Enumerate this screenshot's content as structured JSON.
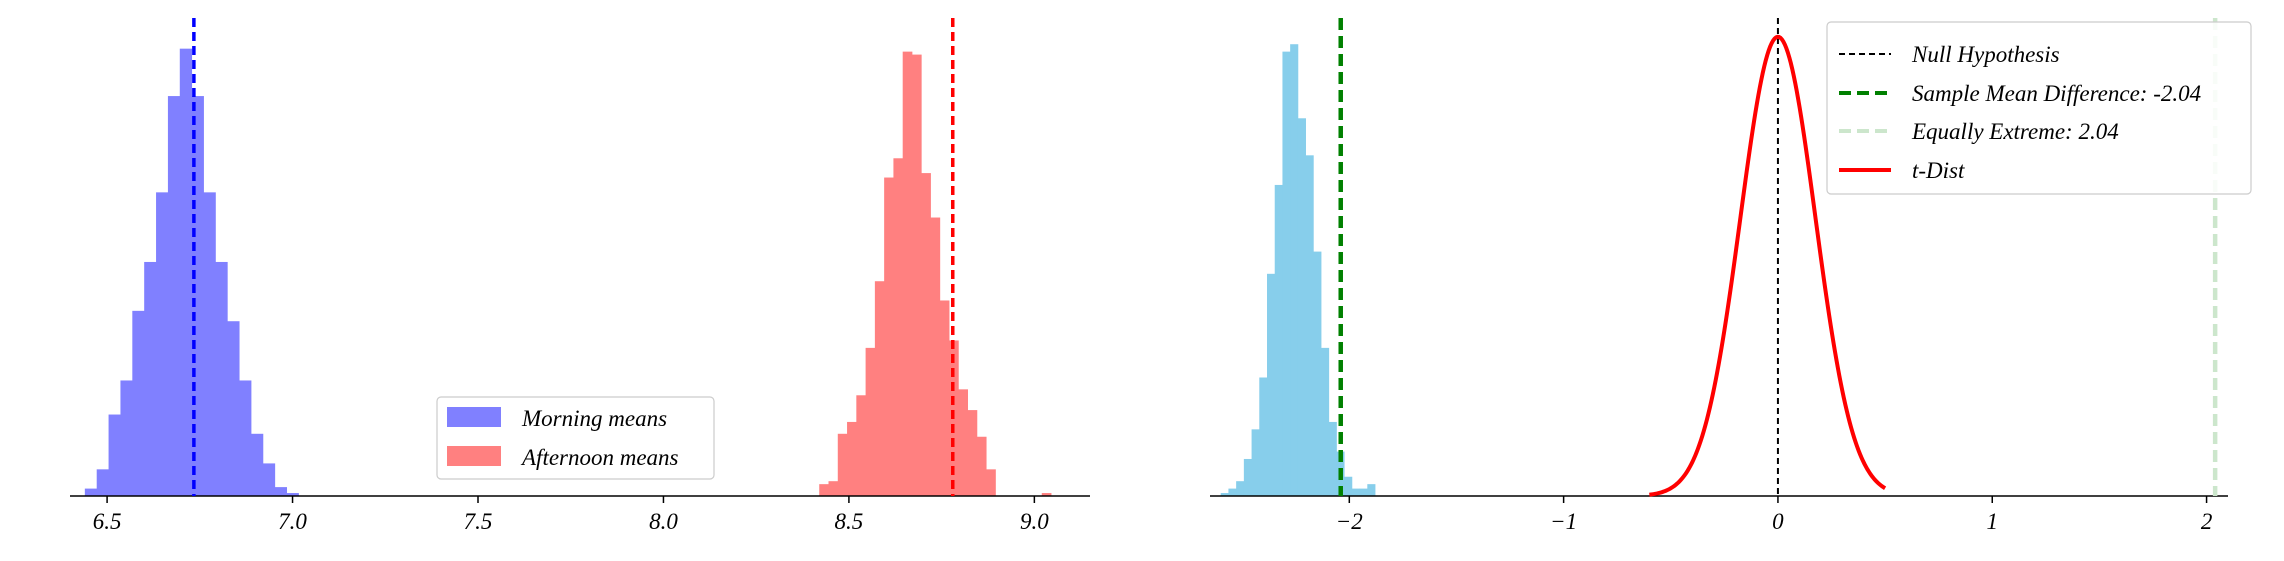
{
  "chart_data": [
    {
      "type": "histogram",
      "xlim": [
        6.4,
        9.15
      ],
      "ylim": [
        0,
        0.32
      ],
      "xticks": [
        6.5,
        7.0,
        7.5,
        8.0,
        8.5,
        9.0
      ],
      "xtick_labels": [
        "6.5",
        "7.0",
        "7.5",
        "8.0",
        "8.5",
        "9.0"
      ],
      "legend_position": "lower-center",
      "series": [
        {
          "name": "Morning means",
          "color": "#8080ff",
          "bin_width": 0.032,
          "bin_start": 6.44,
          "heights": [
            0.005,
            0.018,
            0.055,
            0.078,
            0.125,
            0.158,
            0.205,
            0.27,
            0.302,
            0.27,
            0.205,
            0.158,
            0.118,
            0.078,
            0.042,
            0.022,
            0.006,
            0.002
          ],
          "mean": 6.734,
          "mean_color": "#0000ff"
        },
        {
          "name": "Afternoon means",
          "color": "#ff8080",
          "bin_width": 0.025,
          "bin_start": 8.42,
          "heights": [
            0.008,
            0.01,
            0.042,
            0.05,
            0.068,
            0.1,
            0.145,
            0.215,
            0.228,
            0.3,
            0.298,
            0.218,
            0.188,
            0.132,
            0.105,
            0.072,
            0.058,
            0.04,
            0.018,
            0,
            0,
            0,
            0,
            0,
            0.002
          ],
          "mean": 8.78,
          "mean_color": "#ff0000"
        }
      ]
    },
    {
      "type": "histogram",
      "xlim": [
        -2.65,
        2.1
      ],
      "ylim": [
        0,
        0.32
      ],
      "xticks": [
        -2,
        -1,
        0,
        1,
        2
      ],
      "xtick_labels": [
        "−2",
        "−1",
        "0",
        "1",
        "2"
      ],
      "legend_position": "top-right",
      "bars": {
        "color": "#87ceeb",
        "bin_width": 0.036,
        "bin_start": -2.6,
        "heights": [
          0.002,
          0.005,
          0.01,
          0.025,
          0.045,
          0.08,
          0.15,
          0.21,
          0.3,
          0.305,
          0.255,
          0.23,
          0.165,
          0.1,
          0.05,
          0.03,
          0.013,
          0.005,
          0.005,
          0.008
        ]
      },
      "lines": [
        {
          "name": "Null Hypothesis",
          "x": 0,
          "color": "#000000",
          "style": "dashed-thin"
        },
        {
          "name": "Sample Mean Difference: -2.04",
          "x": -2.04,
          "color": "#008000",
          "style": "dashed-thick"
        },
        {
          "name": "Equally Extreme: 2.04",
          "x": 2.04,
          "color": "#cce6cc",
          "style": "dashed-thick"
        }
      ],
      "curve": {
        "name": "t-Dist",
        "color": "#ff0000",
        "x_range": [
          -0.6,
          0.5
        ],
        "center": 0,
        "scale": 0.175,
        "peak": 0.31
      }
    }
  ]
}
